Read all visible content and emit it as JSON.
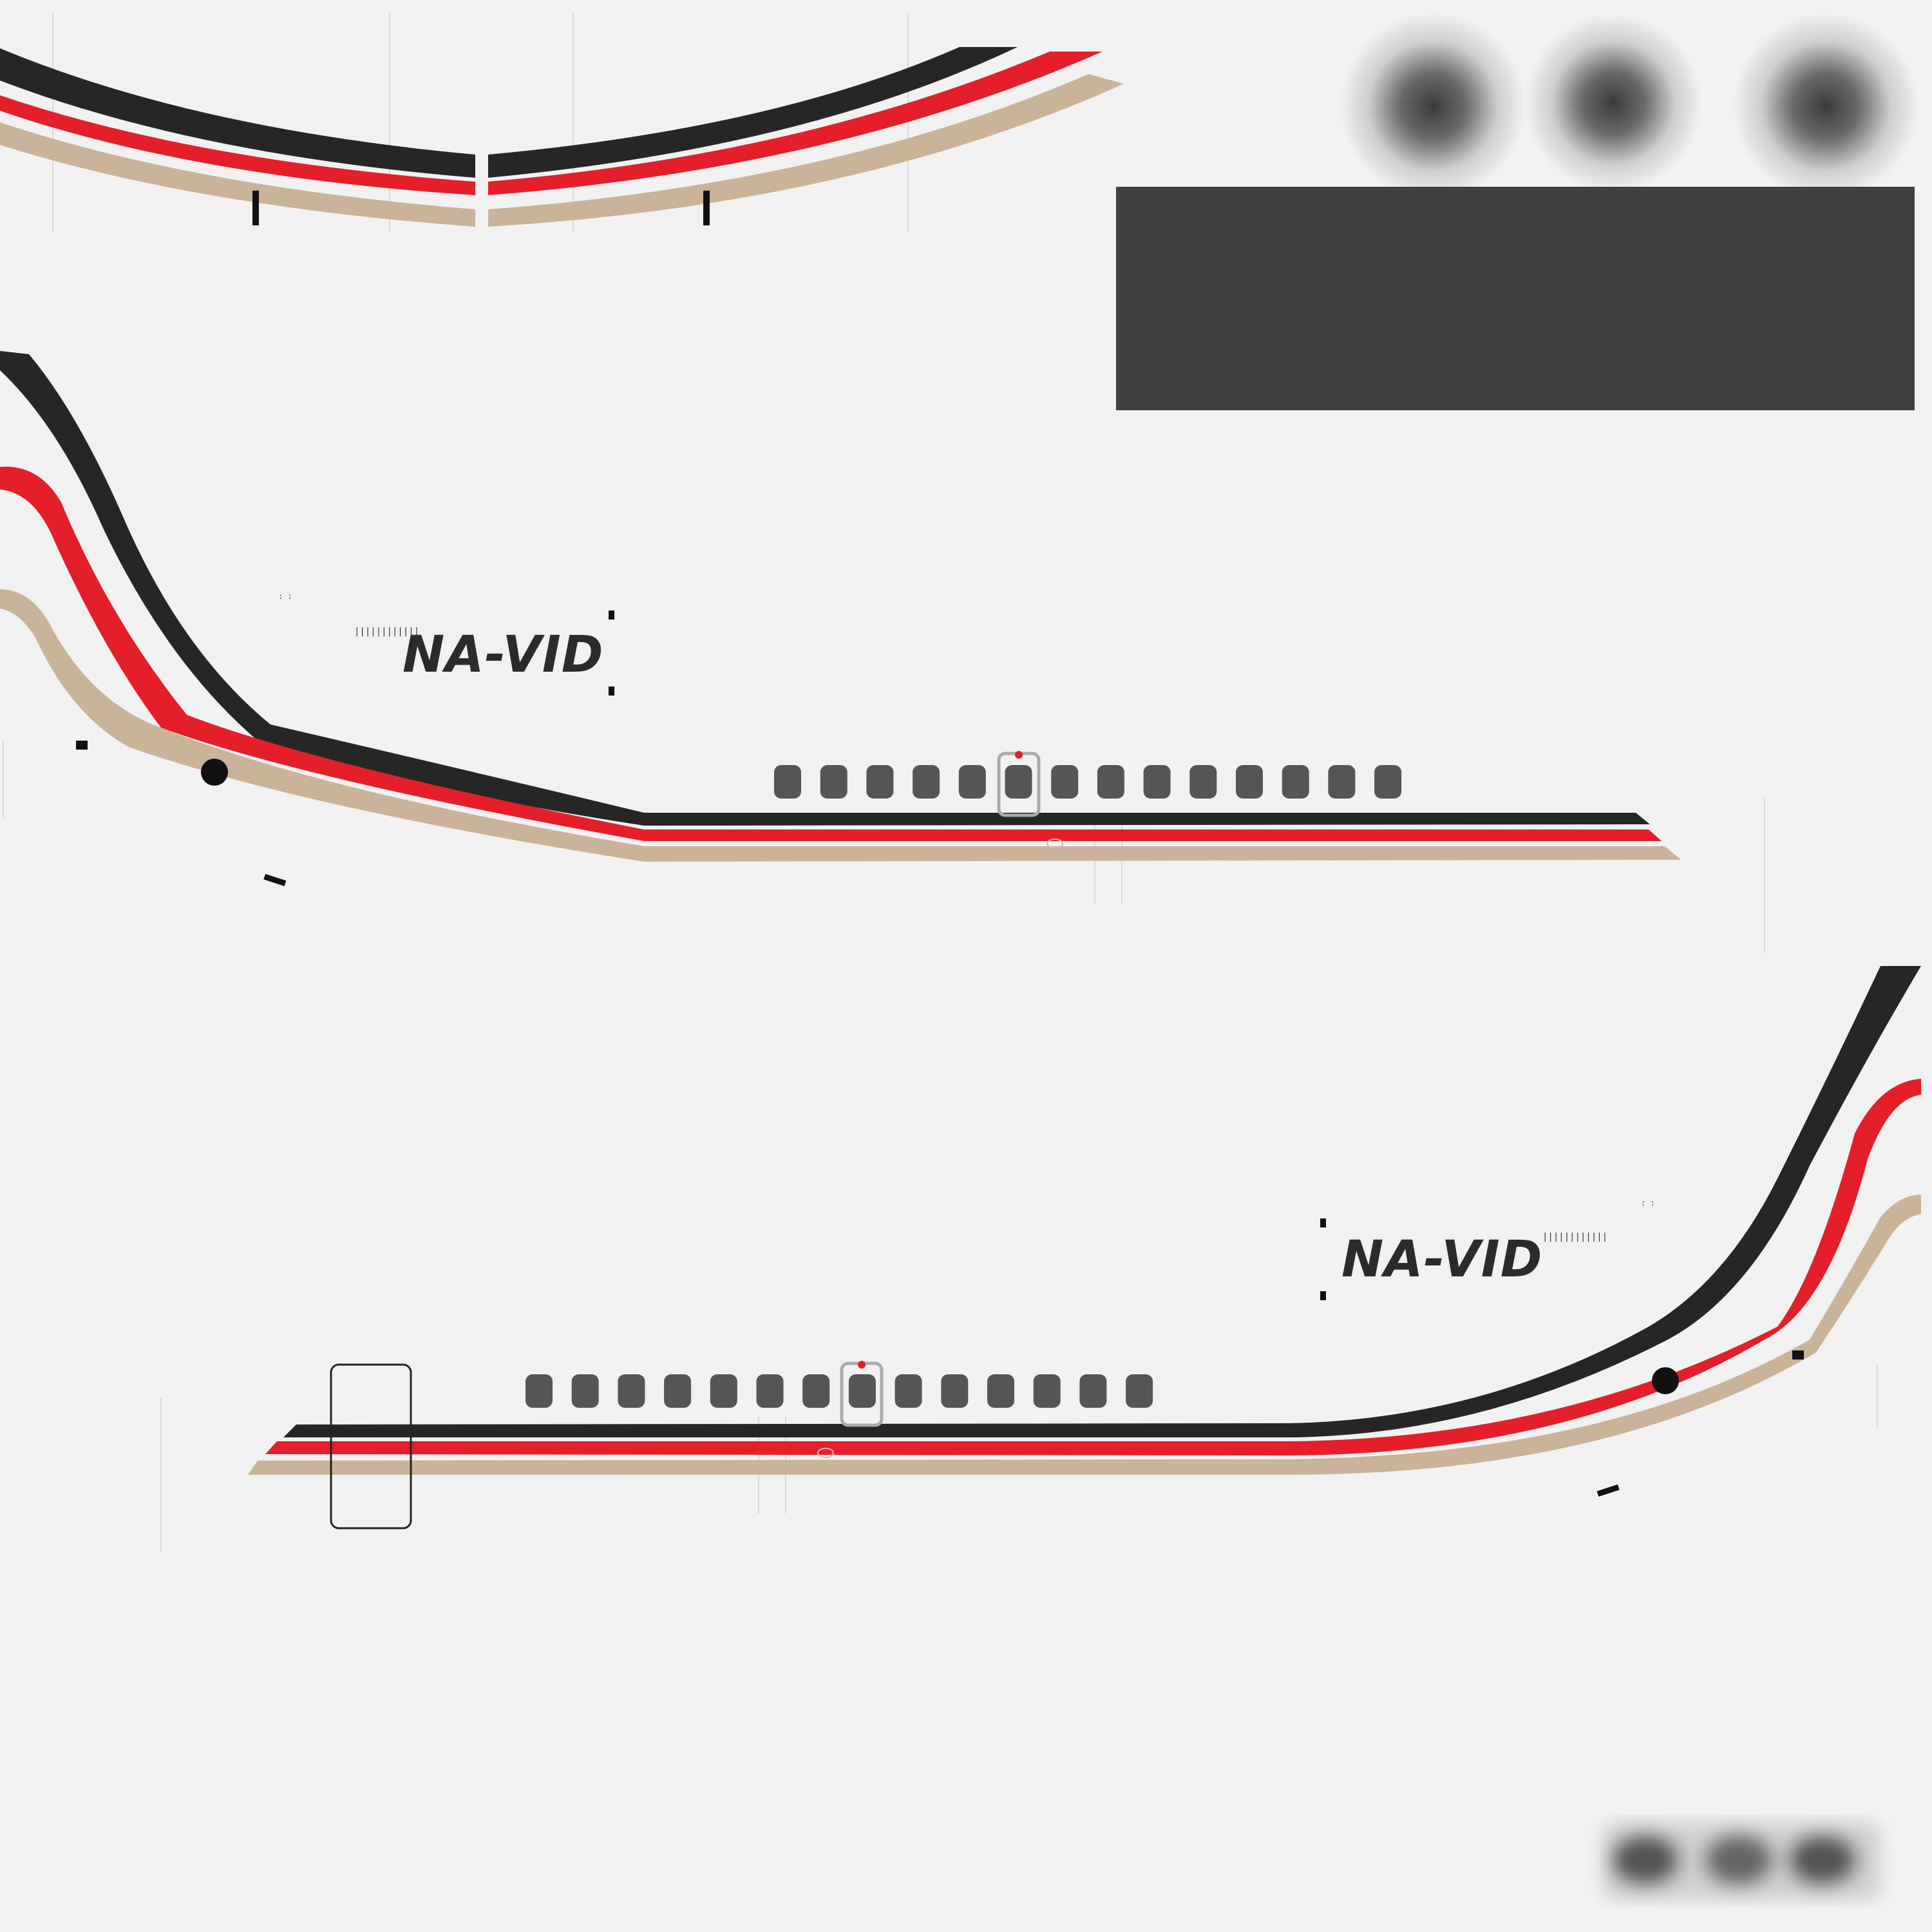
{
  "registration_left": "NA-VID",
  "registration_right": "NA-VID",
  "colors": {
    "background": "#f1f1f1",
    "stripe_black": "#262626",
    "stripe_red": "#e41f2a",
    "stripe_tan": "#c9b49a",
    "window": "#555555",
    "panel": "#404040"
  },
  "windows": {
    "left_side_count": 14,
    "right_side_count": 14
  }
}
